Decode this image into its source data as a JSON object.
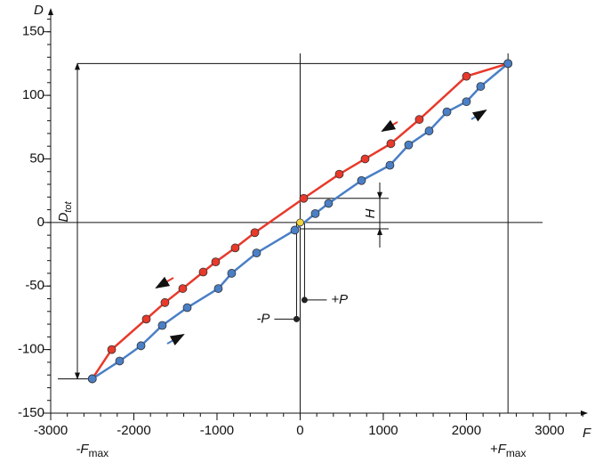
{
  "chart_data": {
    "type": "line",
    "x_label": "F",
    "y_label": "D",
    "xlim": [
      -3000,
      3450
    ],
    "ylim": [
      -150,
      168
    ],
    "xticks": [
      -3000,
      -2000,
      -1000,
      0,
      1000,
      2000,
      3000
    ],
    "yticks": [
      -150,
      -100,
      -50,
      0,
      50,
      100,
      150
    ],
    "minor_ticks": {
      "x": 200,
      "y": 10
    },
    "series": [
      {
        "color": "#e8392b",
        "x": [
          2500,
          2000,
          1433,
          1091,
          781,
          471,
          43,
          -545,
          -781,
          -1016,
          -1166,
          -1412,
          -1626,
          -1850,
          -2267,
          -2500
        ],
        "values": [
          125,
          115,
          81,
          62,
          50,
          38,
          19,
          -8,
          -20,
          -31,
          -39,
          -52,
          -63,
          -76,
          -100,
          -123
        ]
      },
      {
        "color": "#4a7fc6",
        "x": [
          -2500,
          -2171,
          -1914,
          -1658,
          -1358,
          -984,
          -824,
          -524,
          -64,
          182,
          342,
          738,
          1080,
          1305,
          1551,
          1765,
          2000,
          2171,
          2500
        ],
        "values": [
          -123,
          -109,
          -97,
          -81,
          -67,
          -52,
          -40,
          -24,
          -6,
          7,
          15,
          33,
          45,
          61,
          72,
          87,
          95,
          107,
          125
        ]
      }
    ],
    "origin_point": {
      "x": 0,
      "y": 0,
      "color": "#f2d43a"
    },
    "points": [
      {
        "label": "-P",
        "x": -43,
        "y": -76
      },
      {
        "label": "+P",
        "x": 53,
        "y": -61
      }
    ],
    "annotations": {
      "d_tot": {
        "text": "D",
        "sub": "tot"
      },
      "h": "H",
      "f_min": {
        "text": "-F",
        "sub": "max"
      },
      "f_max": {
        "text": "+F",
        "sub": "max"
      }
    }
  }
}
